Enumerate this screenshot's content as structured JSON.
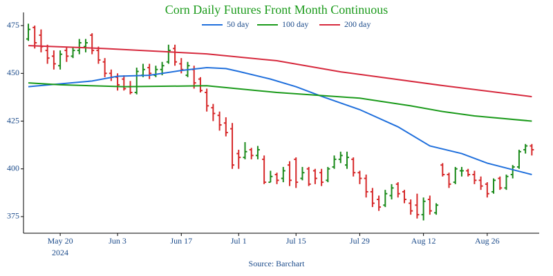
{
  "chart_data": {
    "type": "ohlc",
    "title": "Corn Daily Futures Front Month Continuous",
    "source": "Source: Barchart",
    "year": "2024",
    "categories": [
      "2024-05-13",
      "2024-05-14",
      "2024-05-15",
      "2024-05-16",
      "2024-05-17",
      "2024-05-20",
      "2024-05-21",
      "2024-05-22",
      "2024-05-23",
      "2024-05-24",
      "2024-05-28",
      "2024-05-29",
      "2024-05-30",
      "2024-05-31",
      "2024-06-03",
      "2024-06-04",
      "2024-06-05",
      "2024-06-06",
      "2024-06-07",
      "2024-06-10",
      "2024-06-11",
      "2024-06-12",
      "2024-06-13",
      "2024-06-14",
      "2024-06-17",
      "2024-06-18",
      "2024-06-20",
      "2024-06-21",
      "2024-06-24",
      "2024-06-25",
      "2024-06-26",
      "2024-06-27",
      "2024-06-28",
      "2024-07-01",
      "2024-07-02",
      "2024-07-03",
      "2024-07-05",
      "2024-07-08",
      "2024-07-09",
      "2024-07-10",
      "2024-07-11",
      "2024-07-12",
      "2024-07-15",
      "2024-07-16",
      "2024-07-17",
      "2024-07-18",
      "2024-07-19",
      "2024-07-22",
      "2024-07-23",
      "2024-07-24",
      "2024-07-25",
      "2024-07-26",
      "2024-07-29",
      "2024-07-30",
      "2024-07-31",
      "2024-08-01",
      "2024-08-02",
      "2024-08-05",
      "2024-08-06",
      "2024-08-07",
      "2024-08-08",
      "2024-08-09",
      "2024-08-12",
      "2024-08-13",
      "2024-08-14",
      "2024-08-15",
      "2024-08-16",
      "2024-08-19",
      "2024-08-20",
      "2024-08-21",
      "2024-08-22",
      "2024-08-23",
      "2024-08-26",
      "2024-08-27",
      "2024-08-28",
      "2024-08-29",
      "2024-08-30",
      "2024-09-03",
      "2024-09-04",
      "2024-09-05"
    ],
    "open": [
      468,
      474,
      470,
      462,
      459,
      454,
      462,
      459,
      462,
      464,
      470,
      462,
      456,
      450,
      448,
      447,
      443,
      440,
      449,
      453,
      449,
      452,
      456,
      463,
      455,
      449,
      452,
      447,
      440,
      432,
      428,
      424,
      421,
      408,
      406,
      410,
      407,
      405,
      393,
      397,
      395,
      402,
      405,
      395,
      400,
      399,
      398,
      394,
      401,
      405,
      402,
      405,
      398,
      395,
      388,
      384,
      381,
      386,
      392,
      388,
      382,
      381,
      376,
      384,
      377,
      402,
      397,
      393,
      399,
      399,
      397,
      394,
      392,
      388,
      395,
      390,
      397,
      401,
      410,
      412
    ],
    "high": [
      476,
      475,
      473,
      465,
      462,
      462,
      464,
      464,
      468,
      468,
      471,
      464,
      458,
      452,
      450,
      449,
      446,
      453,
      455,
      455,
      454,
      456,
      465,
      465,
      458,
      456,
      454,
      448,
      442,
      434,
      430,
      427,
      424,
      410,
      414,
      411,
      412,
      407,
      399,
      398,
      401,
      404,
      406,
      401,
      401,
      400,
      400,
      401,
      407,
      409,
      409,
      406,
      399,
      397,
      390,
      386,
      389,
      392,
      393,
      389,
      384,
      387,
      385,
      386,
      382,
      403,
      398,
      401,
      401,
      400,
      399,
      396,
      393,
      395,
      396,
      397,
      402,
      410,
      413,
      413
    ],
    "low": [
      467,
      463,
      461,
      455,
      452,
      452,
      456,
      458,
      460,
      461,
      460,
      455,
      448,
      446,
      441,
      441,
      439,
      439,
      448,
      447,
      448,
      449,
      455,
      454,
      450,
      448,
      442,
      440,
      430,
      425,
      420,
      417,
      400,
      400,
      405,
      405,
      405,
      392,
      393,
      392,
      393,
      391,
      390,
      394,
      391,
      392,
      391,
      393,
      400,
      403,
      400,
      396,
      392,
      385,
      380,
      378,
      380,
      384,
      385,
      382,
      376,
      374,
      373,
      376,
      376,
      396,
      390,
      392,
      396,
      396,
      392,
      389,
      385,
      387,
      389,
      389,
      395,
      400,
      408,
      407
    ],
    "close": [
      473,
      466,
      464,
      458,
      455,
      460,
      459,
      462,
      466,
      466,
      462,
      457,
      450,
      448,
      444,
      442,
      440,
      451,
      452,
      450,
      452,
      454,
      462,
      456,
      452,
      454,
      445,
      441,
      433,
      429,
      423,
      419,
      402,
      406,
      409,
      407,
      410,
      393,
      396,
      394,
      399,
      394,
      393,
      398,
      392,
      395,
      393,
      400,
      405,
      407,
      406,
      398,
      395,
      388,
      382,
      380,
      387,
      390,
      387,
      384,
      378,
      376,
      383,
      378,
      381,
      397,
      392,
      400,
      399,
      397,
      394,
      391,
      387,
      394,
      390,
      396,
      401,
      409,
      412,
      410
    ],
    "up_color": "#1a8a1a",
    "down_color": "#d62728",
    "series": [
      {
        "name": "50 day",
        "color": "#1f6fdc",
        "x": [
          "2024-05-13",
          "2024-05-28",
          "2024-06-03",
          "2024-06-10",
          "2024-06-17",
          "2024-06-24",
          "2024-06-27",
          "2024-07-01",
          "2024-07-09",
          "2024-07-15",
          "2024-07-19",
          "2024-07-29",
          "2024-08-06",
          "2024-08-13",
          "2024-08-20",
          "2024-08-26",
          "2024-09-05"
        ],
        "values": [
          443,
          446,
          448.5,
          449,
          451.5,
          453,
          452.5,
          451,
          447,
          443,
          438,
          431,
          422,
          412,
          408,
          403,
          397
        ]
      },
      {
        "name": "100 day",
        "color": "#1a9a1a",
        "x": [
          "2024-05-13",
          "2024-05-20",
          "2024-06-04",
          "2024-06-24",
          "2024-07-10",
          "2024-07-29",
          "2024-08-08",
          "2024-08-15",
          "2024-08-22",
          "2024-09-05"
        ],
        "values": [
          445,
          444,
          443,
          443.5,
          440,
          437,
          433,
          430,
          427.7,
          425
        ]
      },
      {
        "name": "200 day",
        "color": "#d6283c",
        "x": [
          "2024-05-13",
          "2024-05-30",
          "2024-06-24",
          "2024-07-10",
          "2024-07-24",
          "2024-08-15",
          "2024-09-05"
        ],
        "values": [
          464.5,
          463,
          460.2,
          456.6,
          450.8,
          443.6,
          437.8
        ]
      }
    ],
    "ylim": [
      366.3,
      481.9
    ],
    "yticks": [
      375,
      400,
      425,
      450,
      475
    ],
    "xticks": [
      {
        "value": "2024-05-20",
        "label": "May 20"
      },
      {
        "value": "2024-06-03",
        "label": "Jun 3"
      },
      {
        "value": "2024-06-17",
        "label": "Jun 17"
      },
      {
        "value": "2024-07-01",
        "label": "Jul 1"
      },
      {
        "value": "2024-07-15",
        "label": "Jul 15"
      },
      {
        "value": "2024-07-29",
        "label": "Jul 29"
      },
      {
        "value": "2024-08-12",
        "label": "Aug 12"
      },
      {
        "value": "2024-08-26",
        "label": "Aug 26"
      }
    ]
  }
}
